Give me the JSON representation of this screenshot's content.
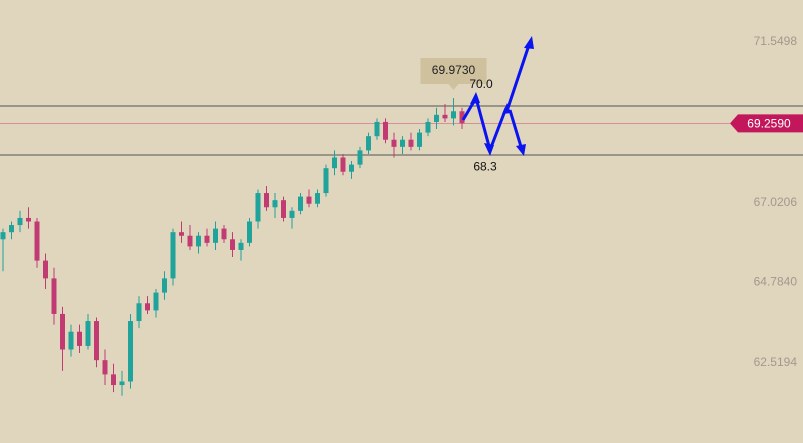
{
  "chart_data": {
    "type": "candlestick",
    "open": [
      66.0,
      66.2,
      66.4,
      66.6,
      66.5,
      65.4,
      64.9,
      63.9,
      62.9,
      63.4,
      63.0,
      63.7,
      62.6,
      62.2,
      61.9,
      62.0,
      63.7,
      64.2,
      64.0,
      64.5,
      64.9,
      66.2,
      66.1,
      65.8,
      66.1,
      65.9,
      66.3,
      66.0,
      65.7,
      65.9,
      66.5,
      67.3,
      66.9,
      67.1,
      66.6,
      66.8,
      67.2,
      67.0,
      67.3,
      68.0,
      68.3,
      67.9,
      68.1,
      68.5,
      68.9,
      69.3,
      68.8,
      68.6,
      68.8,
      68.6,
      69.0,
      69.3,
      69.5,
      69.4,
      69.6
    ],
    "high": [
      66.3,
      66.5,
      66.8,
      66.9,
      66.6,
      65.6,
      65.2,
      64.1,
      63.6,
      63.6,
      63.9,
      63.8,
      62.9,
      62.5,
      62.3,
      63.9,
      64.4,
      64.4,
      64.6,
      65.1,
      66.3,
      66.5,
      66.4,
      66.2,
      66.3,
      66.5,
      66.4,
      66.2,
      66.0,
      66.6,
      67.4,
      67.5,
      67.3,
      67.2,
      66.9,
      67.3,
      67.4,
      67.4,
      68.1,
      68.5,
      68.4,
      68.2,
      68.6,
      69.0,
      69.4,
      69.4,
      69.0,
      68.9,
      69.0,
      69.1,
      69.4,
      69.7,
      69.8,
      69.973,
      69.7
    ],
    "low": [
      65.1,
      66.0,
      66.2,
      66.3,
      65.2,
      64.6,
      63.6,
      62.3,
      62.7,
      62.8,
      62.9,
      62.4,
      61.9,
      61.7,
      61.6,
      61.8,
      63.5,
      63.9,
      63.8,
      64.3,
      64.7,
      65.9,
      65.7,
      65.6,
      65.8,
      65.7,
      65.9,
      65.5,
      65.4,
      65.8,
      66.3,
      66.8,
      66.6,
      66.5,
      66.3,
      66.7,
      66.9,
      66.9,
      67.2,
      67.8,
      67.8,
      67.7,
      68.0,
      68.4,
      68.8,
      68.7,
      68.3,
      68.4,
      68.5,
      68.5,
      68.9,
      69.1,
      69.3,
      69.2,
      69.1
    ],
    "close": [
      66.2,
      66.4,
      66.6,
      66.5,
      65.4,
      64.9,
      63.9,
      62.9,
      63.4,
      63.0,
      63.7,
      62.6,
      62.2,
      61.9,
      62.0,
      63.7,
      64.2,
      64.0,
      64.5,
      64.9,
      66.2,
      66.1,
      65.8,
      66.1,
      65.9,
      66.3,
      66.0,
      65.7,
      65.9,
      66.5,
      67.3,
      66.9,
      67.1,
      66.6,
      66.8,
      67.2,
      67.0,
      67.3,
      68.0,
      68.3,
      67.9,
      68.1,
      68.5,
      68.9,
      69.3,
      68.8,
      68.6,
      68.8,
      68.6,
      69.0,
      69.3,
      69.5,
      69.4,
      69.6,
      69.259
    ],
    "up_color": "#1fa39a",
    "down_color": "#c23a72",
    "ylim": [
      60.27,
      72.73
    ],
    "yticks": [
      62.5194,
      {
        "value": 64.784,
        "label": "64.7840"
      },
      67.0206,
      71.5498
    ],
    "last_price": {
      "value": 69.259,
      "label": "69.2590"
    },
    "hlines": [
      69.75,
      68.37
    ],
    "high_tooltip": {
      "value": 69.973,
      "label": "69.9730"
    },
    "annotations": [
      {
        "value": 70,
        "label": "70.0"
      },
      68.3
    ]
  }
}
